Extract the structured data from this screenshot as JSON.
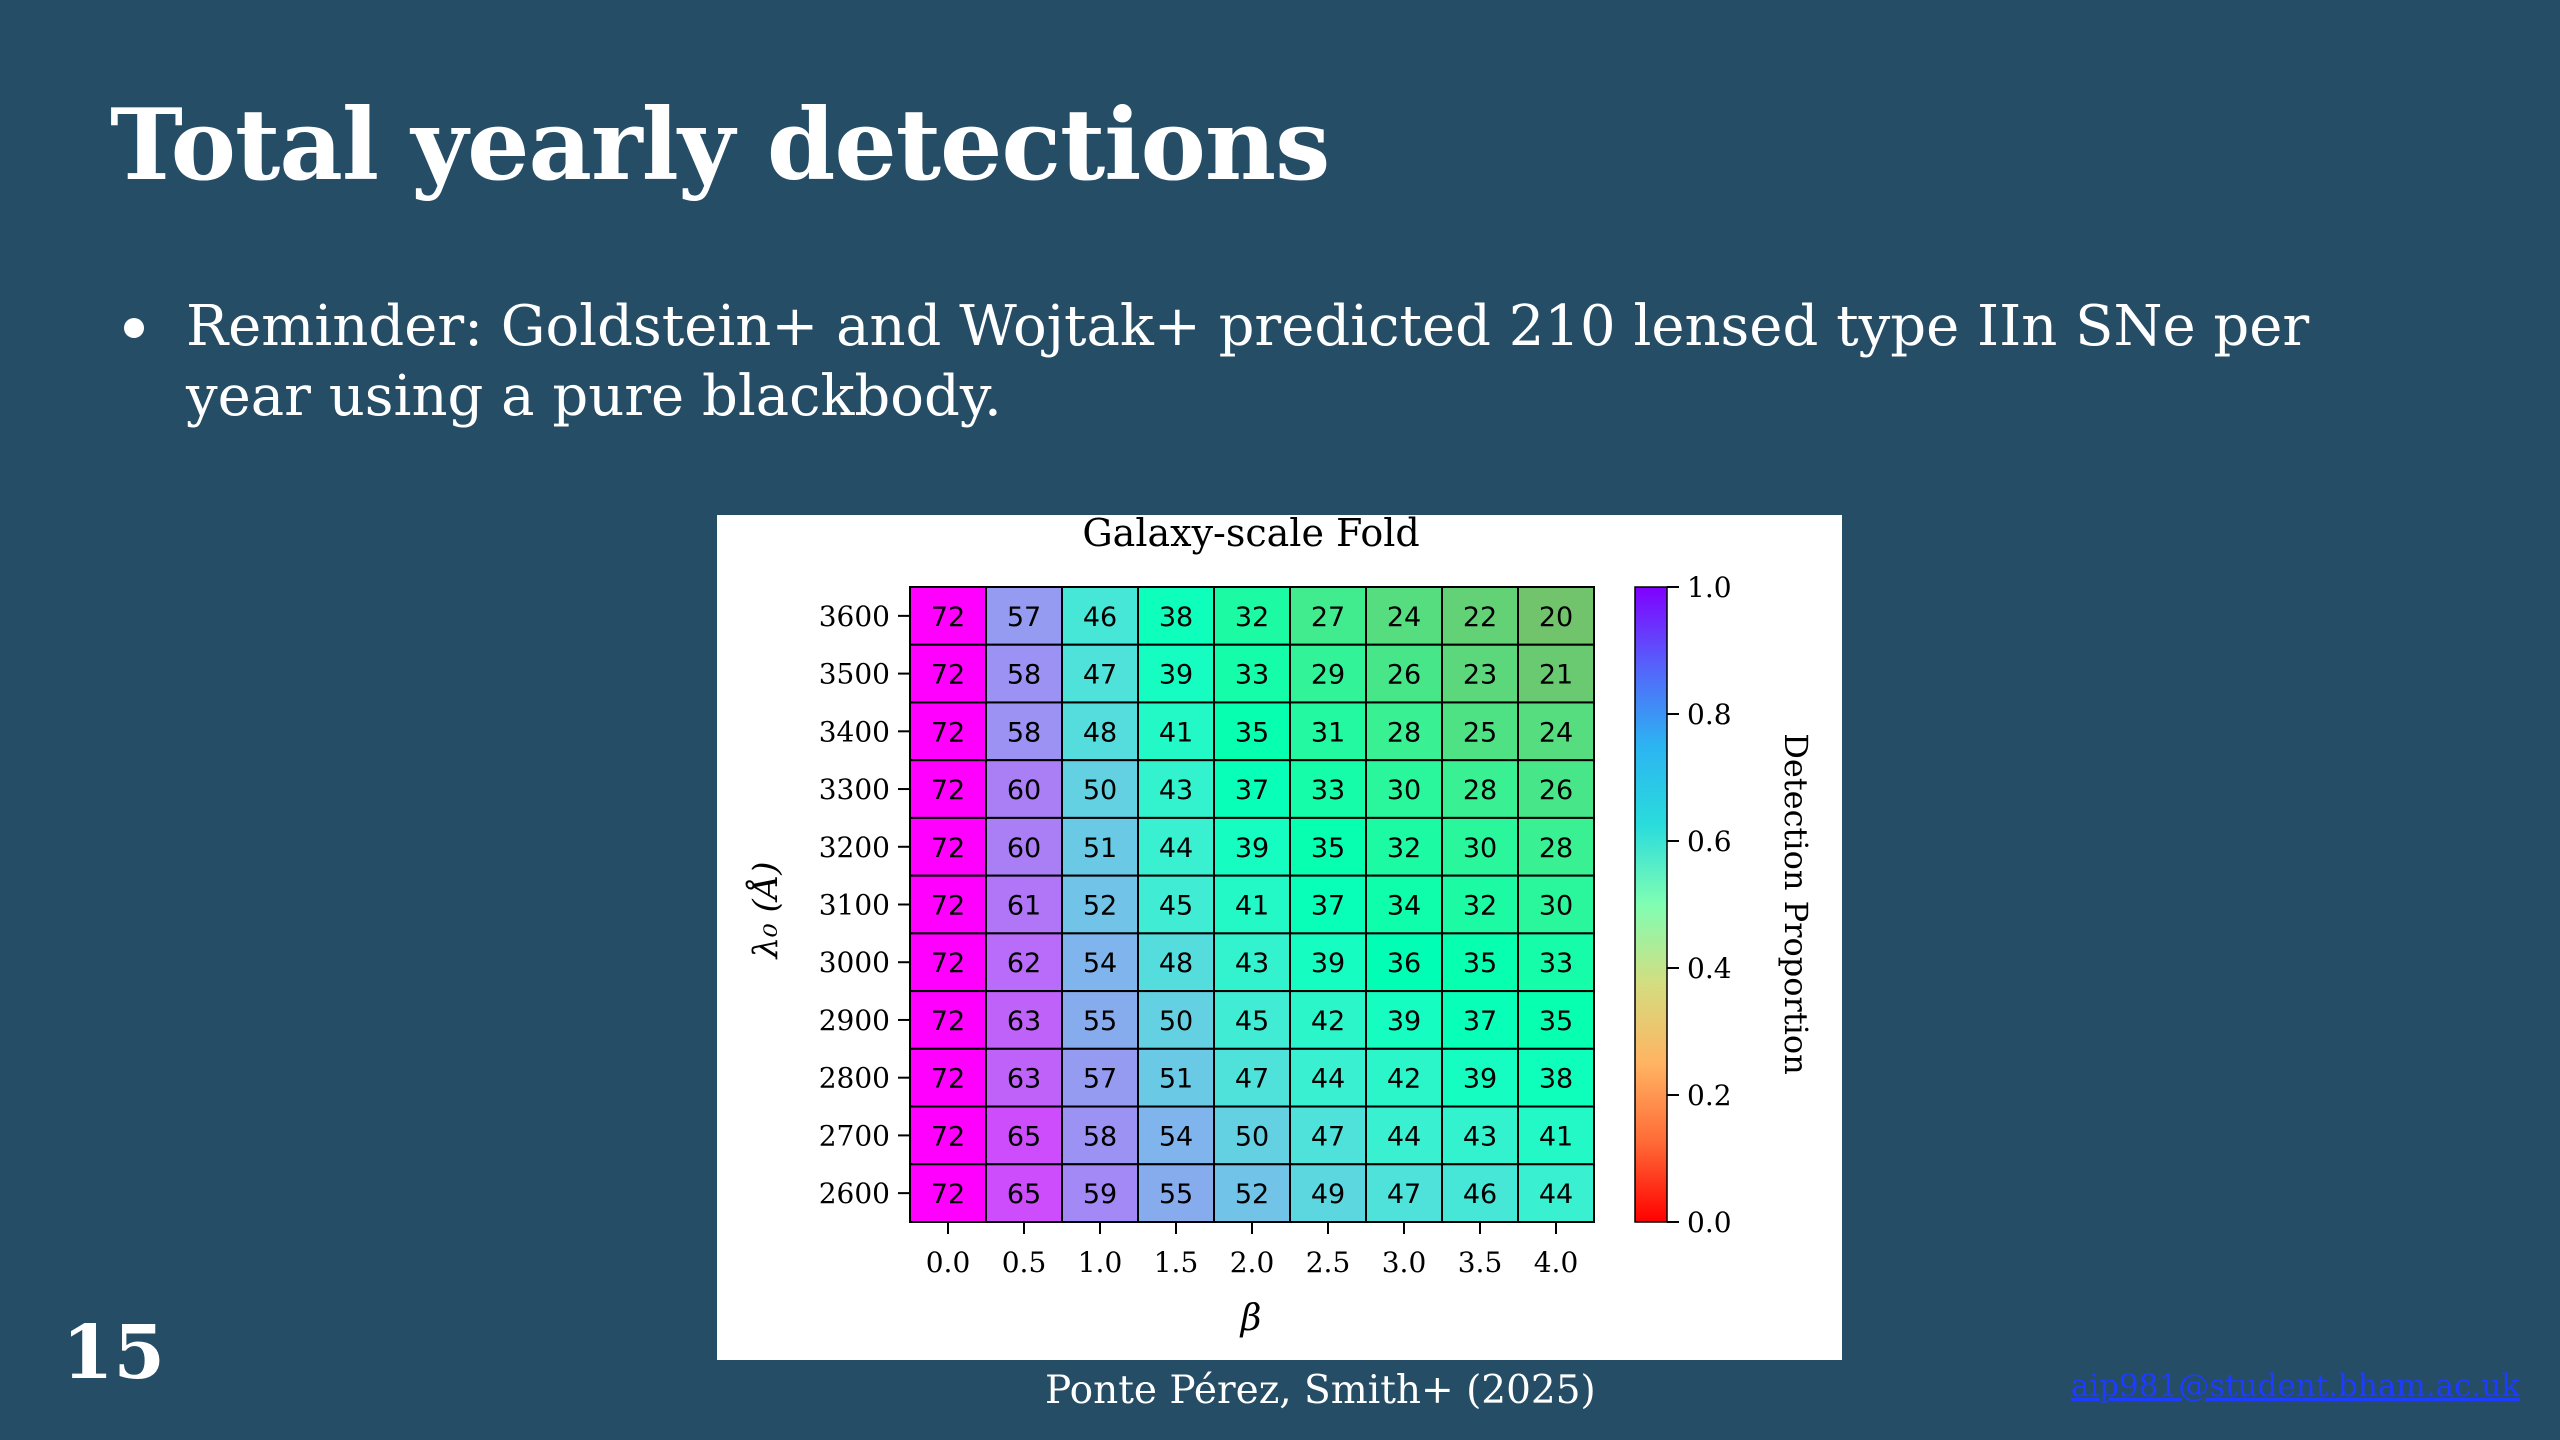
{
  "slide": {
    "title": "Total yearly detections",
    "bullets": [
      "Reminder: Goldstein+ and Wojtak+ predicted 210 lensed type IIn SNe per year using a pure blackbody."
    ],
    "citation": "Ponte Pérez, Smith+ (2025)",
    "page_number": "15",
    "email": "aip981@student.bham.ac.uk",
    "background_color": "#254d66"
  },
  "chart_data": {
    "type": "heatmap",
    "title": "Galaxy-scale Fold",
    "xlabel": "β",
    "ylabel": "λ₀ (Å)",
    "x_categories": [
      "0.0",
      "0.5",
      "1.0",
      "1.5",
      "2.0",
      "2.5",
      "3.0",
      "3.5",
      "4.0"
    ],
    "y_categories": [
      "3600",
      "3500",
      "3400",
      "3300",
      "3200",
      "3100",
      "3000",
      "2900",
      "2800",
      "2700",
      "2600"
    ],
    "values": [
      [
        72,
        57,
        46,
        38,
        32,
        27,
        24,
        22,
        20
      ],
      [
        72,
        58,
        47,
        39,
        33,
        29,
        26,
        23,
        21
      ],
      [
        72,
        58,
        48,
        41,
        35,
        31,
        28,
        25,
        24
      ],
      [
        72,
        60,
        50,
        43,
        37,
        33,
        30,
        28,
        26
      ],
      [
        72,
        60,
        51,
        44,
        39,
        35,
        32,
        30,
        28
      ],
      [
        72,
        61,
        52,
        45,
        41,
        37,
        34,
        32,
        30
      ],
      [
        72,
        62,
        54,
        48,
        43,
        39,
        36,
        35,
        33
      ],
      [
        72,
        63,
        55,
        50,
        45,
        42,
        39,
        37,
        35
      ],
      [
        72,
        63,
        57,
        51,
        47,
        44,
        42,
        39,
        38
      ],
      [
        72,
        65,
        58,
        54,
        50,
        47,
        44,
        43,
        41
      ],
      [
        72,
        65,
        59,
        55,
        52,
        49,
        47,
        46,
        44
      ]
    ],
    "color_scale": {
      "label": "Detection Proportion",
      "colormap": "rainbow",
      "range": [
        0.0,
        1.0
      ],
      "ticks": [
        "0.0",
        "0.2",
        "0.4",
        "0.6",
        "0.8",
        "1.0"
      ],
      "max_value": 72
    }
  }
}
